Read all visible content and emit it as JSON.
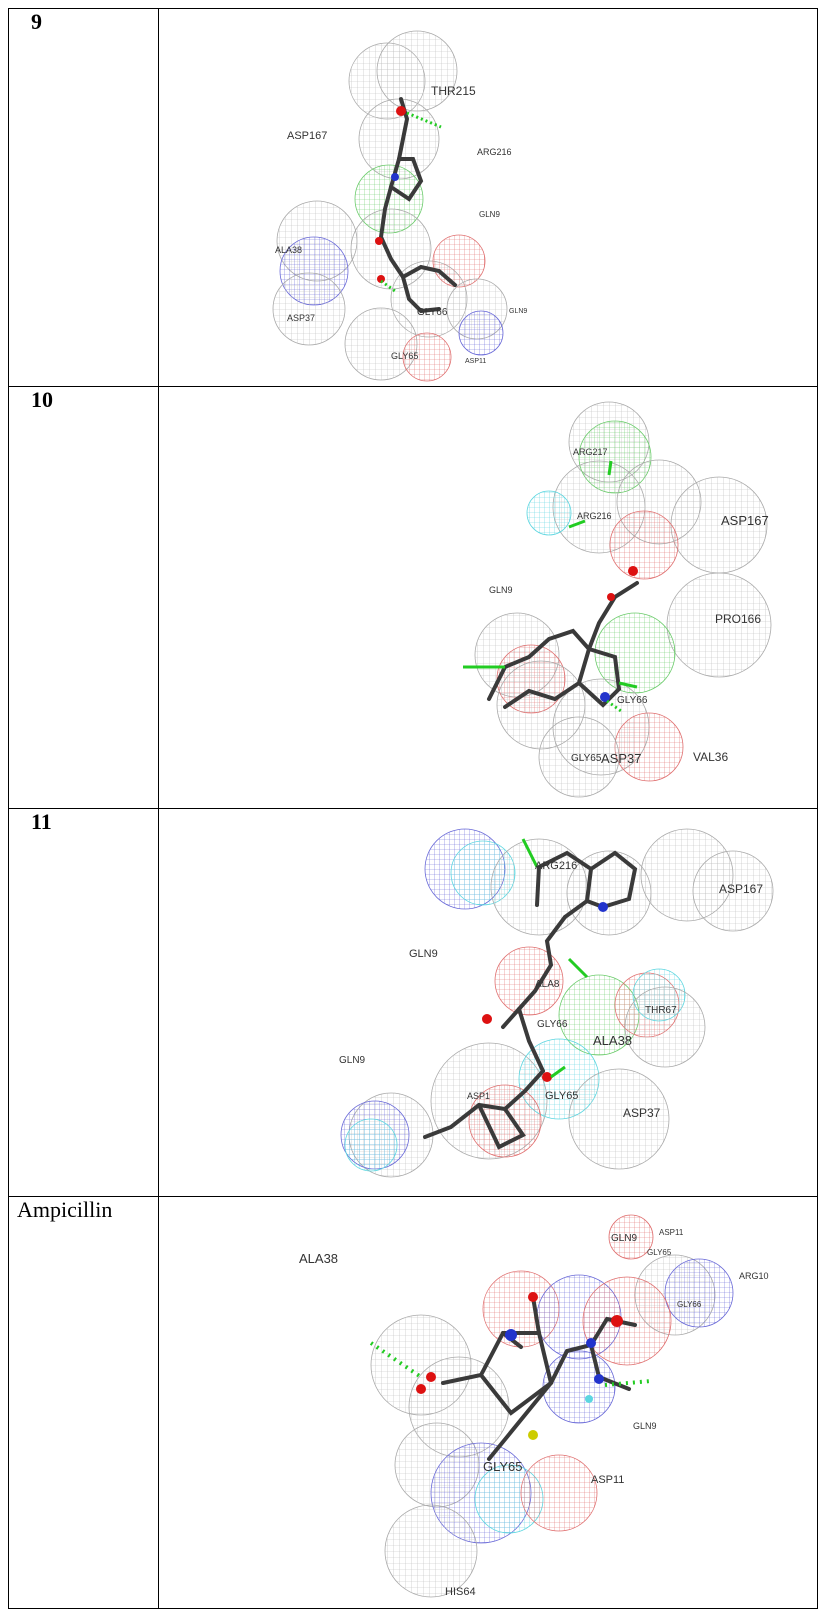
{
  "rows": [
    {
      "label": "9",
      "residues": [
        "THR215",
        "ASP167",
        "ARG216",
        "GLN9",
        "ALA38",
        "GLY66",
        "GLN9",
        "ASP37",
        "GLY65",
        "ASP11"
      ]
    },
    {
      "label": "10",
      "residues": [
        "ARG217",
        "ARG216",
        "ASP167",
        "GLN9",
        "PRO166",
        "GLY66",
        "GLY65",
        "ASP37",
        "VAL36"
      ]
    },
    {
      "label": "11",
      "residues": [
        "ARG216",
        "ASP167",
        "GLN9",
        "ALA8",
        "THR67",
        "GLY66",
        "ALA38",
        "GLN9",
        "ASP1",
        "GLY65",
        "ASP37"
      ]
    },
    {
      "label": "Ampicillin",
      "residues": [
        "ALA38",
        "GLN9",
        "ASP11",
        "GLY65",
        "ARG10",
        "GLY66",
        "GLN9",
        "GLY65",
        "ASP11",
        "HIS64"
      ]
    }
  ],
  "colors": {
    "sphere_grey": "#b8b8b8",
    "sphere_red": "#e07070",
    "sphere_blue": "#6a6ad8",
    "sphere_green": "#6ccc6c",
    "sphere_cyan": "#5cd6e0",
    "hbond": "#22cc22",
    "bond": "#3a3a3a",
    "oxygen": "#dd1111",
    "nitrogen": "#2233cc",
    "sulfur": "#cccc00"
  }
}
